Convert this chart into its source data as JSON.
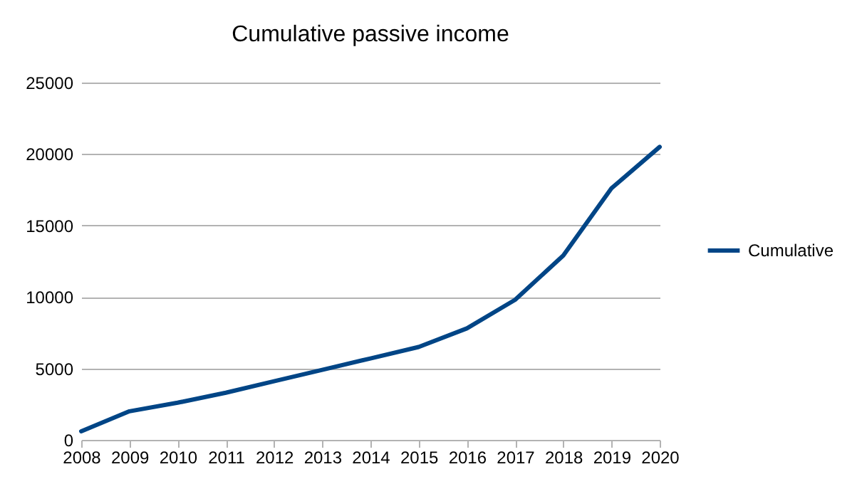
{
  "chart_data": {
    "type": "line",
    "title": "Cumulative passive income",
    "categories": [
      "2008",
      "2009",
      "2010",
      "2011",
      "2012",
      "2013",
      "2014",
      "2015",
      "2016",
      "2017",
      "2018",
      "2019",
      "2020"
    ],
    "series": [
      {
        "name": "Cumulative",
        "color": "#004586",
        "values": [
          600,
          2000,
          2600,
          3300,
          4100,
          4900,
          5700,
          6500,
          7800,
          9800,
          12900,
          17600,
          20500
        ]
      }
    ],
    "ylim": [
      0,
      25000
    ],
    "yticks": [
      0,
      5000,
      10000,
      15000,
      20000,
      25000
    ],
    "grid": "y",
    "legend": "right"
  }
}
